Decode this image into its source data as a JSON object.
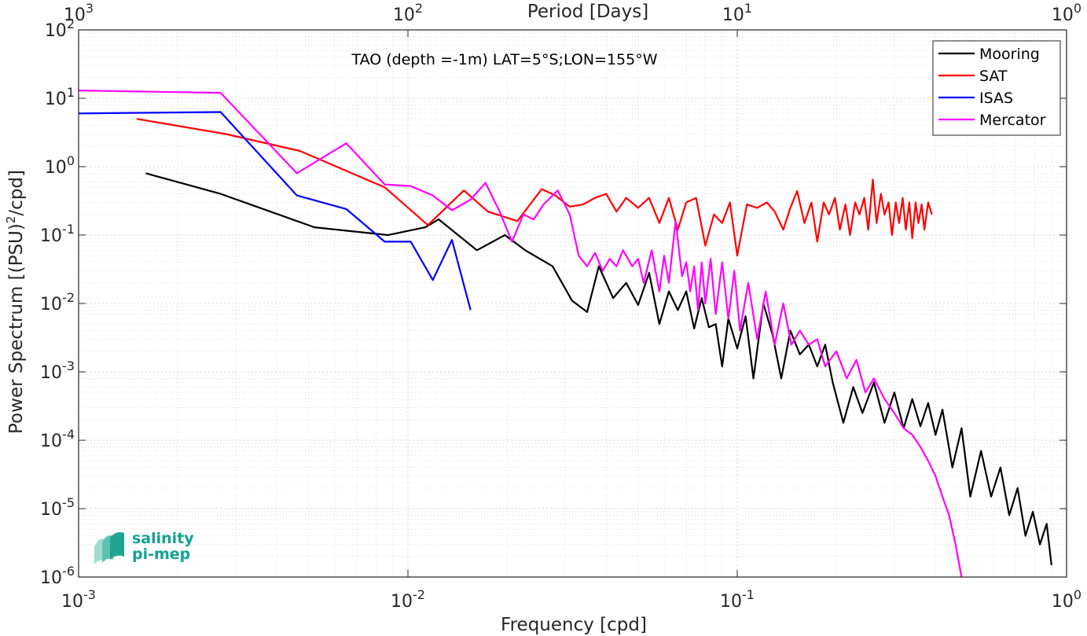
{
  "chart_data": {
    "type": "line",
    "x_scale": "log",
    "y_scale": "log",
    "xlim": [
      0.001,
      1
    ],
    "ylim": [
      1e-06,
      100
    ],
    "grid": true,
    "minor_grid": true,
    "legend_position": "top-right",
    "xlabel": "Frequency [cpd]",
    "ylabel": "Power Spectrum [(PSU)",
    "ylabel_sup": "2",
    "ylabel_tail": "/cpd]",
    "top_xlabel": "Period [Days]",
    "annotation": "TAO (depth =-1m) LAT=5°S;LON=155°W",
    "x_ticks": [
      0.001,
      0.01,
      0.1,
      1
    ],
    "x_tick_labels": [
      {
        "base": "10",
        "exp": "-3"
      },
      {
        "base": "10",
        "exp": "-2"
      },
      {
        "base": "10",
        "exp": "-1"
      },
      {
        "base": "10",
        "exp": "0"
      }
    ],
    "top_tick_labels": [
      {
        "base": "10",
        "exp": "3"
      },
      {
        "base": "10",
        "exp": "2"
      },
      {
        "base": "10",
        "exp": "1"
      },
      {
        "base": "10",
        "exp": "0"
      }
    ],
    "y_ticks": [
      100,
      10,
      1,
      0.1,
      0.01,
      0.001,
      0.0001,
      1e-05,
      1e-06
    ],
    "y_tick_labels": [
      {
        "base": "10",
        "exp": "2"
      },
      {
        "base": "10",
        "exp": "1"
      },
      {
        "base": "10",
        "exp": "0"
      },
      {
        "base": "10",
        "exp": "-1"
      },
      {
        "base": "10",
        "exp": "-2"
      },
      {
        "base": "10",
        "exp": "-3"
      },
      {
        "base": "10",
        "exp": "-4"
      },
      {
        "base": "10",
        "exp": "-5"
      },
      {
        "base": "10",
        "exp": "-6"
      }
    ],
    "series": [
      {
        "name": "Mooring",
        "color": "#000000",
        "x": [
          0.0016,
          0.0027,
          0.0052,
          0.0087,
          0.0113,
          0.0124,
          0.0162,
          0.0197,
          0.0227,
          0.0275,
          0.0315,
          0.035,
          0.038,
          0.042,
          0.046,
          0.05,
          0.054,
          0.058,
          0.062,
          0.066,
          0.07,
          0.074,
          0.078,
          0.082,
          0.086,
          0.09,
          0.094,
          0.1,
          0.106,
          0.112,
          0.12,
          0.128,
          0.136,
          0.145,
          0.155,
          0.165,
          0.175,
          0.185,
          0.195,
          0.21,
          0.225,
          0.24,
          0.26,
          0.28,
          0.3,
          0.32,
          0.34,
          0.36,
          0.38,
          0.4,
          0.42,
          0.45,
          0.48,
          0.51,
          0.55,
          0.59,
          0.63,
          0.67,
          0.71,
          0.75,
          0.79,
          0.83,
          0.87,
          0.9
        ],
        "y": [
          0.8,
          0.4,
          0.13,
          0.1,
          0.13,
          0.17,
          0.06,
          0.1,
          0.06,
          0.035,
          0.011,
          0.0075,
          0.035,
          0.012,
          0.02,
          0.0095,
          0.028,
          0.005,
          0.015,
          0.008,
          0.015,
          0.0043,
          0.012,
          0.0045,
          0.005,
          0.0012,
          0.006,
          0.0022,
          0.0065,
          0.0008,
          0.01,
          0.0035,
          0.0008,
          0.004,
          0.0018,
          0.0025,
          0.0012,
          0.0025,
          0.0007,
          0.00018,
          0.0006,
          0.00025,
          0.0007,
          0.00018,
          0.0005,
          0.00015,
          0.0004,
          0.00016,
          0.00035,
          0.00012,
          0.00028,
          4e-05,
          0.00015,
          1.5e-05,
          7e-05,
          1.5e-05,
          4e-05,
          8e-06,
          2e-05,
          4e-06,
          9e-06,
          3e-06,
          6e-06,
          1.5e-06
        ]
      },
      {
        "name": "SAT",
        "color": "#ff0000",
        "x": [
          0.0015,
          0.0028,
          0.0047,
          0.0085,
          0.0115,
          0.0148,
          0.0175,
          0.0215,
          0.0255,
          0.028,
          0.031,
          0.034,
          0.037,
          0.04,
          0.043,
          0.046,
          0.05,
          0.054,
          0.058,
          0.062,
          0.066,
          0.07,
          0.075,
          0.08,
          0.085,
          0.09,
          0.095,
          0.1,
          0.107,
          0.115,
          0.123,
          0.13,
          0.138,
          0.145,
          0.152,
          0.16,
          0.168,
          0.175,
          0.183,
          0.19,
          0.198,
          0.205,
          0.213,
          0.22,
          0.228,
          0.235,
          0.243,
          0.25,
          0.258,
          0.265,
          0.273,
          0.28,
          0.288,
          0.295,
          0.303,
          0.31,
          0.318,
          0.325,
          0.333,
          0.34,
          0.348,
          0.355,
          0.363,
          0.37,
          0.38,
          0.39
        ],
        "y": [
          5,
          3,
          1.7,
          0.5,
          0.14,
          0.45,
          0.22,
          0.16,
          0.47,
          0.38,
          0.26,
          0.28,
          0.35,
          0.4,
          0.22,
          0.35,
          0.25,
          0.35,
          0.15,
          0.35,
          0.12,
          0.3,
          0.35,
          0.07,
          0.2,
          0.15,
          0.3,
          0.05,
          0.28,
          0.25,
          0.3,
          0.22,
          0.12,
          0.25,
          0.44,
          0.15,
          0.3,
          0.08,
          0.3,
          0.2,
          0.35,
          0.12,
          0.28,
          0.1,
          0.3,
          0.2,
          0.35,
          0.12,
          0.65,
          0.15,
          0.4,
          0.2,
          0.3,
          0.1,
          0.3,
          0.15,
          0.35,
          0.12,
          0.3,
          0.09,
          0.3,
          0.15,
          0.28,
          0.12,
          0.3,
          0.2
        ]
      },
      {
        "name": "ISAS",
        "color": "#0000ff",
        "x": [
          0.001,
          0.0027,
          0.0046,
          0.0065,
          0.0085,
          0.0102,
          0.0119,
          0.0136,
          0.0155
        ],
        "y": [
          6,
          6.3,
          0.38,
          0.24,
          0.08,
          0.08,
          0.022,
          0.085,
          0.008
        ]
      },
      {
        "name": "Mercator",
        "color": "#ff00ff",
        "x": [
          0.001,
          0.0027,
          0.0046,
          0.0065,
          0.0085,
          0.0102,
          0.0119,
          0.0136,
          0.0155,
          0.0172,
          0.019,
          0.0207,
          0.0224,
          0.0241,
          0.0258,
          0.0285,
          0.031,
          0.033,
          0.035,
          0.037,
          0.039,
          0.041,
          0.043,
          0.045,
          0.048,
          0.05,
          0.052,
          0.055,
          0.058,
          0.06,
          0.062,
          0.065,
          0.068,
          0.07,
          0.072,
          0.074,
          0.076,
          0.078,
          0.08,
          0.083,
          0.086,
          0.09,
          0.094,
          0.098,
          0.102,
          0.108,
          0.115,
          0.122,
          0.13,
          0.138,
          0.146,
          0.155,
          0.165,
          0.175,
          0.185,
          0.2,
          0.215,
          0.23,
          0.245,
          0.26,
          0.28,
          0.3,
          0.32,
          0.34,
          0.36,
          0.38,
          0.4,
          0.42,
          0.44,
          0.46,
          0.48
        ],
        "y": [
          13,
          12,
          0.8,
          2.2,
          0.55,
          0.52,
          0.38,
          0.23,
          0.33,
          0.58,
          0.22,
          0.08,
          0.2,
          0.17,
          0.28,
          0.45,
          0.2,
          0.05,
          0.035,
          0.055,
          0.03,
          0.045,
          0.035,
          0.06,
          0.035,
          0.045,
          0.02,
          0.06,
          0.015,
          0.05,
          0.02,
          0.16,
          0.025,
          0.04,
          0.015,
          0.035,
          0.008,
          0.04,
          0.01,
          0.045,
          0.007,
          0.04,
          0.006,
          0.03,
          0.004,
          0.02,
          0.003,
          0.015,
          0.0025,
          0.01,
          0.0025,
          0.004,
          0.0025,
          0.003,
          0.0012,
          0.002,
          0.0008,
          0.0015,
          0.0005,
          0.0008,
          0.0004,
          0.00025,
          0.00015,
          0.00012,
          8e-05,
          5e-05,
          3e-05,
          1.5e-05,
          8e-06,
          3e-06,
          8e-07
        ]
      }
    ]
  },
  "logo": {
    "line1": "salinity",
    "line2": "pi-mep",
    "colors": [
      "#1fa58f",
      "#5cc3b0",
      "#9fdccd"
    ]
  }
}
